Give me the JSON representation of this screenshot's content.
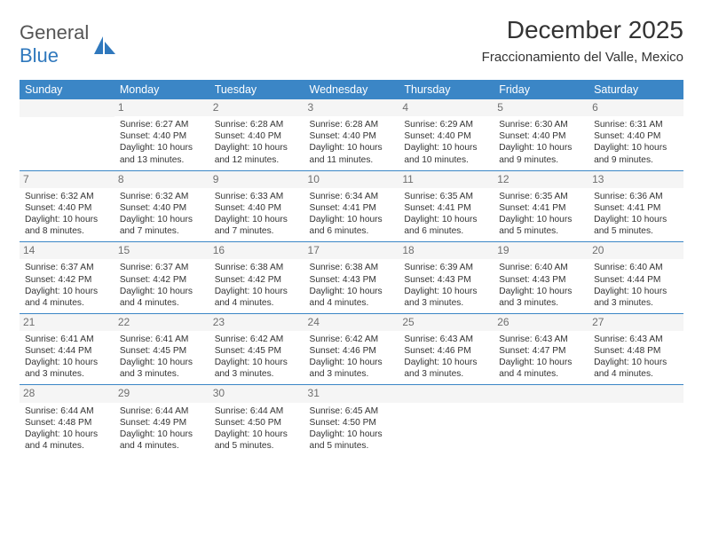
{
  "logo": {
    "text_gray": "General",
    "text_blue": "Blue"
  },
  "title": "December 2025",
  "subtitle": "Fraccionamiento del Valle, Mexico",
  "weekdays": [
    "Sunday",
    "Monday",
    "Tuesday",
    "Wednesday",
    "Thursday",
    "Friday",
    "Saturday"
  ],
  "style": {
    "header_bg": "#3b86c6",
    "row_separator": "#3b86c6",
    "daynum_bg": "#f5f5f5",
    "daynum_color": "#6f6f6f",
    "text_color": "#333333",
    "logo_blue": "#2f78bd"
  },
  "weeks": [
    [
      {
        "blank": true
      },
      {
        "n": "1",
        "sunrise": "Sunrise: 6:27 AM",
        "sunset": "Sunset: 4:40 PM",
        "day1": "Daylight: 10 hours",
        "day2": "and 13 minutes."
      },
      {
        "n": "2",
        "sunrise": "Sunrise: 6:28 AM",
        "sunset": "Sunset: 4:40 PM",
        "day1": "Daylight: 10 hours",
        "day2": "and 12 minutes."
      },
      {
        "n": "3",
        "sunrise": "Sunrise: 6:28 AM",
        "sunset": "Sunset: 4:40 PM",
        "day1": "Daylight: 10 hours",
        "day2": "and 11 minutes."
      },
      {
        "n": "4",
        "sunrise": "Sunrise: 6:29 AM",
        "sunset": "Sunset: 4:40 PM",
        "day1": "Daylight: 10 hours",
        "day2": "and 10 minutes."
      },
      {
        "n": "5",
        "sunrise": "Sunrise: 6:30 AM",
        "sunset": "Sunset: 4:40 PM",
        "day1": "Daylight: 10 hours",
        "day2": "and 9 minutes."
      },
      {
        "n": "6",
        "sunrise": "Sunrise: 6:31 AM",
        "sunset": "Sunset: 4:40 PM",
        "day1": "Daylight: 10 hours",
        "day2": "and 9 minutes."
      }
    ],
    [
      {
        "n": "7",
        "sunrise": "Sunrise: 6:32 AM",
        "sunset": "Sunset: 4:40 PM",
        "day1": "Daylight: 10 hours",
        "day2": "and 8 minutes."
      },
      {
        "n": "8",
        "sunrise": "Sunrise: 6:32 AM",
        "sunset": "Sunset: 4:40 PM",
        "day1": "Daylight: 10 hours",
        "day2": "and 7 minutes."
      },
      {
        "n": "9",
        "sunrise": "Sunrise: 6:33 AM",
        "sunset": "Sunset: 4:40 PM",
        "day1": "Daylight: 10 hours",
        "day2": "and 7 minutes."
      },
      {
        "n": "10",
        "sunrise": "Sunrise: 6:34 AM",
        "sunset": "Sunset: 4:41 PM",
        "day1": "Daylight: 10 hours",
        "day2": "and 6 minutes."
      },
      {
        "n": "11",
        "sunrise": "Sunrise: 6:35 AM",
        "sunset": "Sunset: 4:41 PM",
        "day1": "Daylight: 10 hours",
        "day2": "and 6 minutes."
      },
      {
        "n": "12",
        "sunrise": "Sunrise: 6:35 AM",
        "sunset": "Sunset: 4:41 PM",
        "day1": "Daylight: 10 hours",
        "day2": "and 5 minutes."
      },
      {
        "n": "13",
        "sunrise": "Sunrise: 6:36 AM",
        "sunset": "Sunset: 4:41 PM",
        "day1": "Daylight: 10 hours",
        "day2": "and 5 minutes."
      }
    ],
    [
      {
        "n": "14",
        "sunrise": "Sunrise: 6:37 AM",
        "sunset": "Sunset: 4:42 PM",
        "day1": "Daylight: 10 hours",
        "day2": "and 4 minutes."
      },
      {
        "n": "15",
        "sunrise": "Sunrise: 6:37 AM",
        "sunset": "Sunset: 4:42 PM",
        "day1": "Daylight: 10 hours",
        "day2": "and 4 minutes."
      },
      {
        "n": "16",
        "sunrise": "Sunrise: 6:38 AM",
        "sunset": "Sunset: 4:42 PM",
        "day1": "Daylight: 10 hours",
        "day2": "and 4 minutes."
      },
      {
        "n": "17",
        "sunrise": "Sunrise: 6:38 AM",
        "sunset": "Sunset: 4:43 PM",
        "day1": "Daylight: 10 hours",
        "day2": "and 4 minutes."
      },
      {
        "n": "18",
        "sunrise": "Sunrise: 6:39 AM",
        "sunset": "Sunset: 4:43 PM",
        "day1": "Daylight: 10 hours",
        "day2": "and 3 minutes."
      },
      {
        "n": "19",
        "sunrise": "Sunrise: 6:40 AM",
        "sunset": "Sunset: 4:43 PM",
        "day1": "Daylight: 10 hours",
        "day2": "and 3 minutes."
      },
      {
        "n": "20",
        "sunrise": "Sunrise: 6:40 AM",
        "sunset": "Sunset: 4:44 PM",
        "day1": "Daylight: 10 hours",
        "day2": "and 3 minutes."
      }
    ],
    [
      {
        "n": "21",
        "sunrise": "Sunrise: 6:41 AM",
        "sunset": "Sunset: 4:44 PM",
        "day1": "Daylight: 10 hours",
        "day2": "and 3 minutes."
      },
      {
        "n": "22",
        "sunrise": "Sunrise: 6:41 AM",
        "sunset": "Sunset: 4:45 PM",
        "day1": "Daylight: 10 hours",
        "day2": "and 3 minutes."
      },
      {
        "n": "23",
        "sunrise": "Sunrise: 6:42 AM",
        "sunset": "Sunset: 4:45 PM",
        "day1": "Daylight: 10 hours",
        "day2": "and 3 minutes."
      },
      {
        "n": "24",
        "sunrise": "Sunrise: 6:42 AM",
        "sunset": "Sunset: 4:46 PM",
        "day1": "Daylight: 10 hours",
        "day2": "and 3 minutes."
      },
      {
        "n": "25",
        "sunrise": "Sunrise: 6:43 AM",
        "sunset": "Sunset: 4:46 PM",
        "day1": "Daylight: 10 hours",
        "day2": "and 3 minutes."
      },
      {
        "n": "26",
        "sunrise": "Sunrise: 6:43 AM",
        "sunset": "Sunset: 4:47 PM",
        "day1": "Daylight: 10 hours",
        "day2": "and 4 minutes."
      },
      {
        "n": "27",
        "sunrise": "Sunrise: 6:43 AM",
        "sunset": "Sunset: 4:48 PM",
        "day1": "Daylight: 10 hours",
        "day2": "and 4 minutes."
      }
    ],
    [
      {
        "n": "28",
        "sunrise": "Sunrise: 6:44 AM",
        "sunset": "Sunset: 4:48 PM",
        "day1": "Daylight: 10 hours",
        "day2": "and 4 minutes."
      },
      {
        "n": "29",
        "sunrise": "Sunrise: 6:44 AM",
        "sunset": "Sunset: 4:49 PM",
        "day1": "Daylight: 10 hours",
        "day2": "and 4 minutes."
      },
      {
        "n": "30",
        "sunrise": "Sunrise: 6:44 AM",
        "sunset": "Sunset: 4:50 PM",
        "day1": "Daylight: 10 hours",
        "day2": "and 5 minutes."
      },
      {
        "n": "31",
        "sunrise": "Sunrise: 6:45 AM",
        "sunset": "Sunset: 4:50 PM",
        "day1": "Daylight: 10 hours",
        "day2": "and 5 minutes."
      },
      {
        "blank": true
      },
      {
        "blank": true
      },
      {
        "blank": true
      }
    ]
  ]
}
